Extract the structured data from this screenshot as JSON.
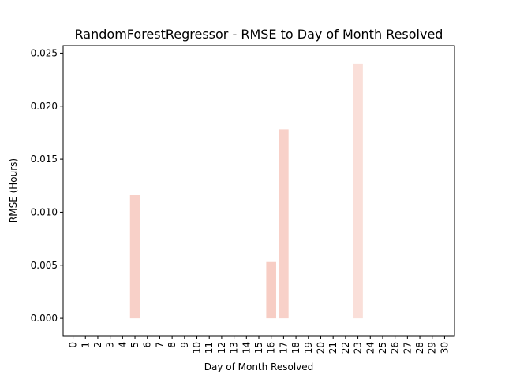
{
  "chart_data": {
    "type": "bar",
    "title": "RandomForestRegressor - RMSE to Day of Month Resolved",
    "xlabel": "Day of Month Resolved",
    "ylabel": "RMSE (Hours)",
    "categories": [
      "0",
      "1",
      "2",
      "3",
      "4",
      "5",
      "6",
      "7",
      "8",
      "9",
      "10",
      "11",
      "12",
      "13",
      "14",
      "15",
      "16",
      "17",
      "18",
      "19",
      "20",
      "21",
      "22",
      "23",
      "24",
      "25",
      "26",
      "27",
      "28",
      "29",
      "30"
    ],
    "values": [
      0,
      0,
      0,
      0,
      0,
      0.0116,
      0,
      0,
      0,
      0,
      0,
      0,
      0,
      0,
      0,
      0,
      0.0053,
      0.0178,
      0,
      0,
      0,
      0,
      0,
      0.024,
      0,
      0,
      0,
      0,
      0,
      0,
      0
    ],
    "bar_colors": [
      "#f7c6be",
      "#f7c6be",
      "#f7c6be",
      "#f7c6be",
      "#f7c6be",
      "#f8d0c8",
      "#f7c6be",
      "#f7c6be",
      "#f7c6be",
      "#f7c6be",
      "#f7c6be",
      "#f7c6be",
      "#f7c6be",
      "#f7c6be",
      "#f7c6be",
      "#f7c6be",
      "#f7cdc4",
      "#f8d1c9",
      "#f7c6be",
      "#f7c6be",
      "#f7c6be",
      "#f7c6be",
      "#f7c6be",
      "#fadfd9",
      "#f7c6be",
      "#f7c6be",
      "#f7c6be",
      "#f7c6be",
      "#f7c6be",
      "#f7c6be",
      "#f7c6be"
    ],
    "ylim": [
      -0.0017,
      0.0257
    ],
    "yticks": [
      "0.000",
      "0.005",
      "0.010",
      "0.015",
      "0.020",
      "0.025"
    ],
    "ytick_values": [
      0,
      0.005,
      0.01,
      0.015,
      0.02,
      0.025
    ],
    "grid": false,
    "legend": "none"
  }
}
